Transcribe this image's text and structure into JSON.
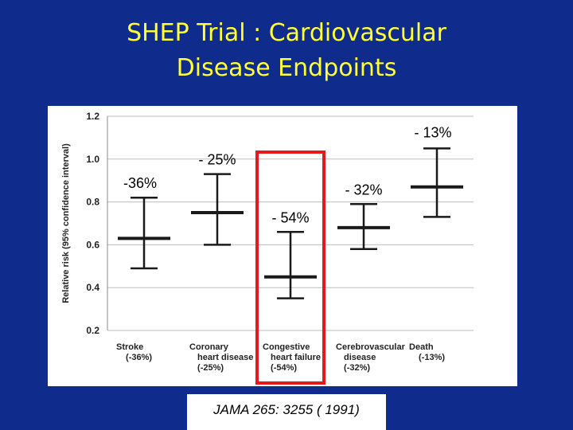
{
  "title": {
    "line1": "SHEP Trial : Cardiovascular",
    "line2": "Disease Endpoints"
  },
  "citation": "JAMA 265: 3255 ( 1991)",
  "colors": {
    "background": "#0f2c8c",
    "title": "#ffff33",
    "highlight": "#e81919",
    "marks": "#1a1a1a"
  },
  "chart_data": {
    "type": "errorbar",
    "ylabel": "Relative risk (95% confidence interval)",
    "ylim": [
      0.2,
      1.2
    ],
    "yticks": [
      "0.2",
      "0.4",
      "0.6",
      "0.8",
      "1.0",
      "1.2"
    ],
    "grid": true,
    "categories": [
      {
        "lines": [
          "Stroke",
          "(-36%)"
        ],
        "estimate": 0.63,
        "lower": 0.49,
        "upper": 0.82,
        "annotation": "-36%"
      },
      {
        "lines": [
          "Coronary",
          "heart disease",
          "(-25%)"
        ],
        "estimate": 0.75,
        "lower": 0.6,
        "upper": 0.93,
        "annotation": "- 25%"
      },
      {
        "lines": [
          "Congestive",
          "heart failure",
          "(-54%)"
        ],
        "estimate": 0.45,
        "lower": 0.35,
        "upper": 0.66,
        "annotation": "- 54%",
        "highlighted": true
      },
      {
        "lines": [
          "Cerebrovascular",
          "disease",
          "(-32%)"
        ],
        "estimate": 0.68,
        "lower": 0.58,
        "upper": 0.79,
        "annotation": "- 32%"
      },
      {
        "lines": [
          "Death",
          "(-13%)"
        ],
        "estimate": 0.87,
        "lower": 0.73,
        "upper": 1.05,
        "annotation": "- 13%"
      }
    ]
  }
}
